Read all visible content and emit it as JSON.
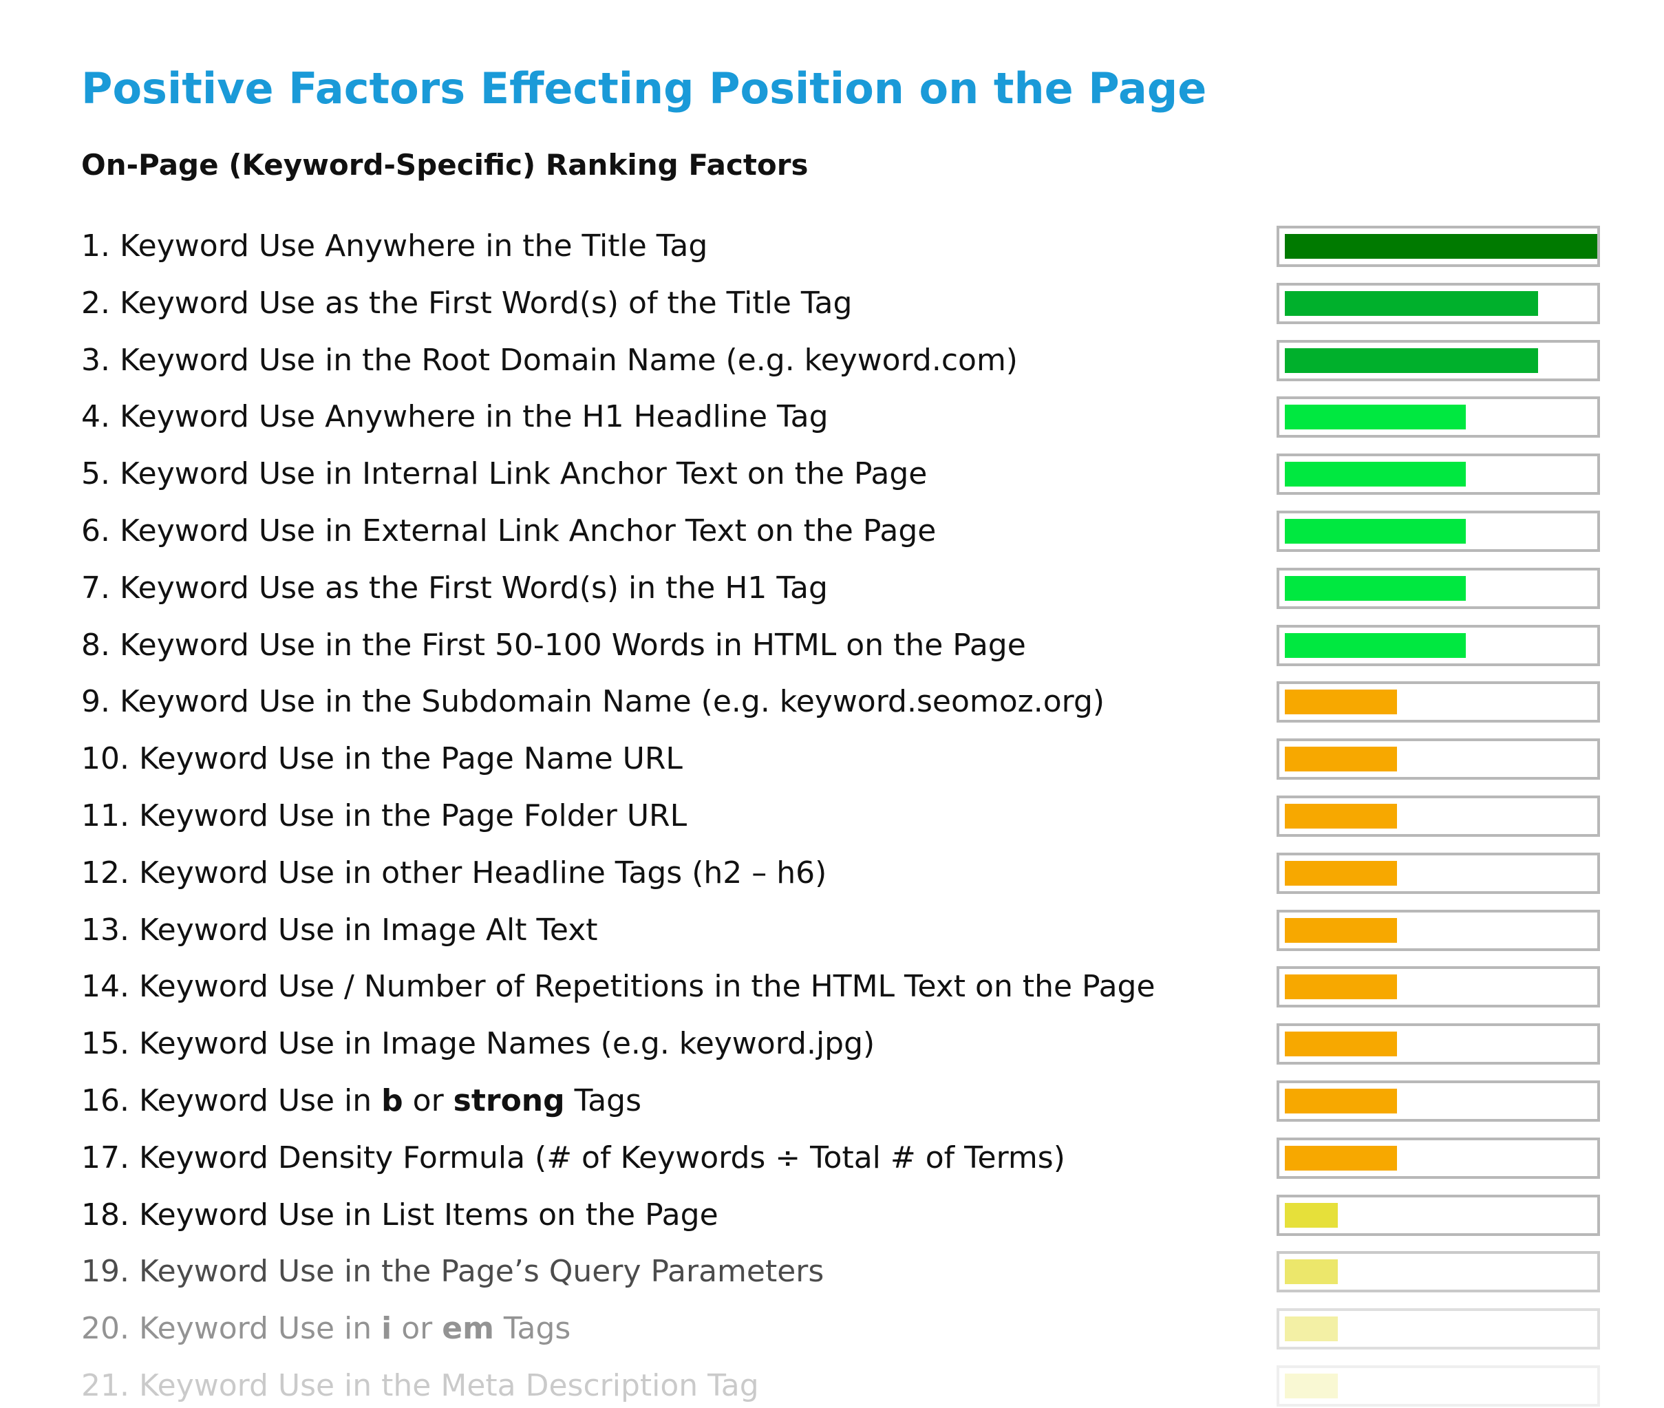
{
  "title": "Positive Factors Effecting Position on the Page",
  "subtitle": "On-Page (Keyword-Specific) Ranking Factors",
  "colors": {
    "title": "#1a9ad8",
    "frame": "#b8b8b8"
  },
  "chart_data": {
    "type": "bar",
    "orientation": "horizontal",
    "title": "Positive Factors Effecting Position on the Page",
    "subtitle": "On-Page (Keyword-Specific) Ranking Factors",
    "grid": false,
    "legend": "none",
    "xlim": [
      0,
      1
    ],
    "categories": [
      {
        "parts": [
          {
            "t": "1. Keyword Use Anywhere in the Title Tag"
          }
        ]
      },
      {
        "parts": [
          {
            "t": "2. Keyword Use as the First Word(s) of the Title Tag"
          }
        ]
      },
      {
        "parts": [
          {
            "t": "3. Keyword Use in the Root Domain Name (e.g. keyword.com)"
          }
        ]
      },
      {
        "parts": [
          {
            "t": "4. Keyword Use Anywhere in the H1 Headline Tag"
          }
        ]
      },
      {
        "parts": [
          {
            "t": "5. Keyword Use in Internal Link Anchor Text on the Page"
          }
        ]
      },
      {
        "parts": [
          {
            "t": "6. Keyword Use in External Link Anchor Text on the Page"
          }
        ]
      },
      {
        "parts": [
          {
            "t": "7. Keyword Use as the First Word(s) in the H1 Tag"
          }
        ]
      },
      {
        "parts": [
          {
            "t": "8. Keyword Use in the First 50-100 Words in HTML on the Page"
          }
        ]
      },
      {
        "parts": [
          {
            "t": "9. Keyword Use in the Subdomain Name (e.g. keyword.seomoz.org)"
          }
        ]
      },
      {
        "parts": [
          {
            "t": "10. Keyword Use in the Page Name URL"
          }
        ]
      },
      {
        "parts": [
          {
            "t": "11. Keyword Use in the Page Folder URL"
          }
        ]
      },
      {
        "parts": [
          {
            "t": "12. Keyword Use in other Headline Tags (h2 – h6)"
          }
        ]
      },
      {
        "parts": [
          {
            "t": "13. Keyword Use in Image Alt Text"
          }
        ]
      },
      {
        "parts": [
          {
            "t": "14. Keyword Use / Number of Repetitions in the HTML Text on the Page"
          }
        ]
      },
      {
        "parts": [
          {
            "t": "15. Keyword Use in Image Names (e.g. keyword.jpg)"
          }
        ]
      },
      {
        "parts": [
          {
            "t": "16. Keyword Use in "
          },
          {
            "t": "b",
            "bold": true
          },
          {
            "t": " or "
          },
          {
            "t": "strong",
            "bold": true
          },
          {
            "t": " Tags"
          }
        ]
      },
      {
        "parts": [
          {
            "t": "17. Keyword Density Formula (# of Keywords ÷ Total # of Terms)"
          }
        ]
      },
      {
        "parts": [
          {
            "t": "18. Keyword Use in List Items on the Page"
          }
        ]
      },
      {
        "parts": [
          {
            "t": "19. Keyword Use in the Page’s Query Parameters"
          }
        ]
      },
      {
        "parts": [
          {
            "t": "20. Keyword Use in "
          },
          {
            "t": "i",
            "bold": true
          },
          {
            "t": " or "
          },
          {
            "t": "em",
            "bold": true
          },
          {
            "t": " Tags"
          }
        ]
      },
      {
        "parts": [
          {
            "t": "21. Keyword Use in the Meta Description Tag"
          }
        ]
      }
    ],
    "values": [
      1.0,
      0.81,
      0.81,
      0.58,
      0.58,
      0.58,
      0.58,
      0.58,
      0.36,
      0.36,
      0.36,
      0.36,
      0.36,
      0.36,
      0.36,
      0.36,
      0.36,
      0.17,
      0.17,
      0.17,
      0.17
    ],
    "bar_colors": [
      "#007a00",
      "#00b02c",
      "#00b02c",
      "#00e840",
      "#00e840",
      "#00e840",
      "#00e840",
      "#00e840",
      "#f7a800",
      "#f7a800",
      "#f7a800",
      "#f7a800",
      "#f7a800",
      "#f7a800",
      "#f7a800",
      "#f7a800",
      "#f7a800",
      "#e6e03a",
      "#e6e03a",
      "#e6e03a",
      "#e6e03a"
    ],
    "row_opacity": [
      1,
      1,
      1,
      1,
      1,
      1,
      1,
      1,
      1,
      1,
      1,
      1,
      1,
      1,
      1,
      1,
      1,
      1,
      0.75,
      0.45,
      0.22
    ],
    "text_color": "#111111"
  }
}
